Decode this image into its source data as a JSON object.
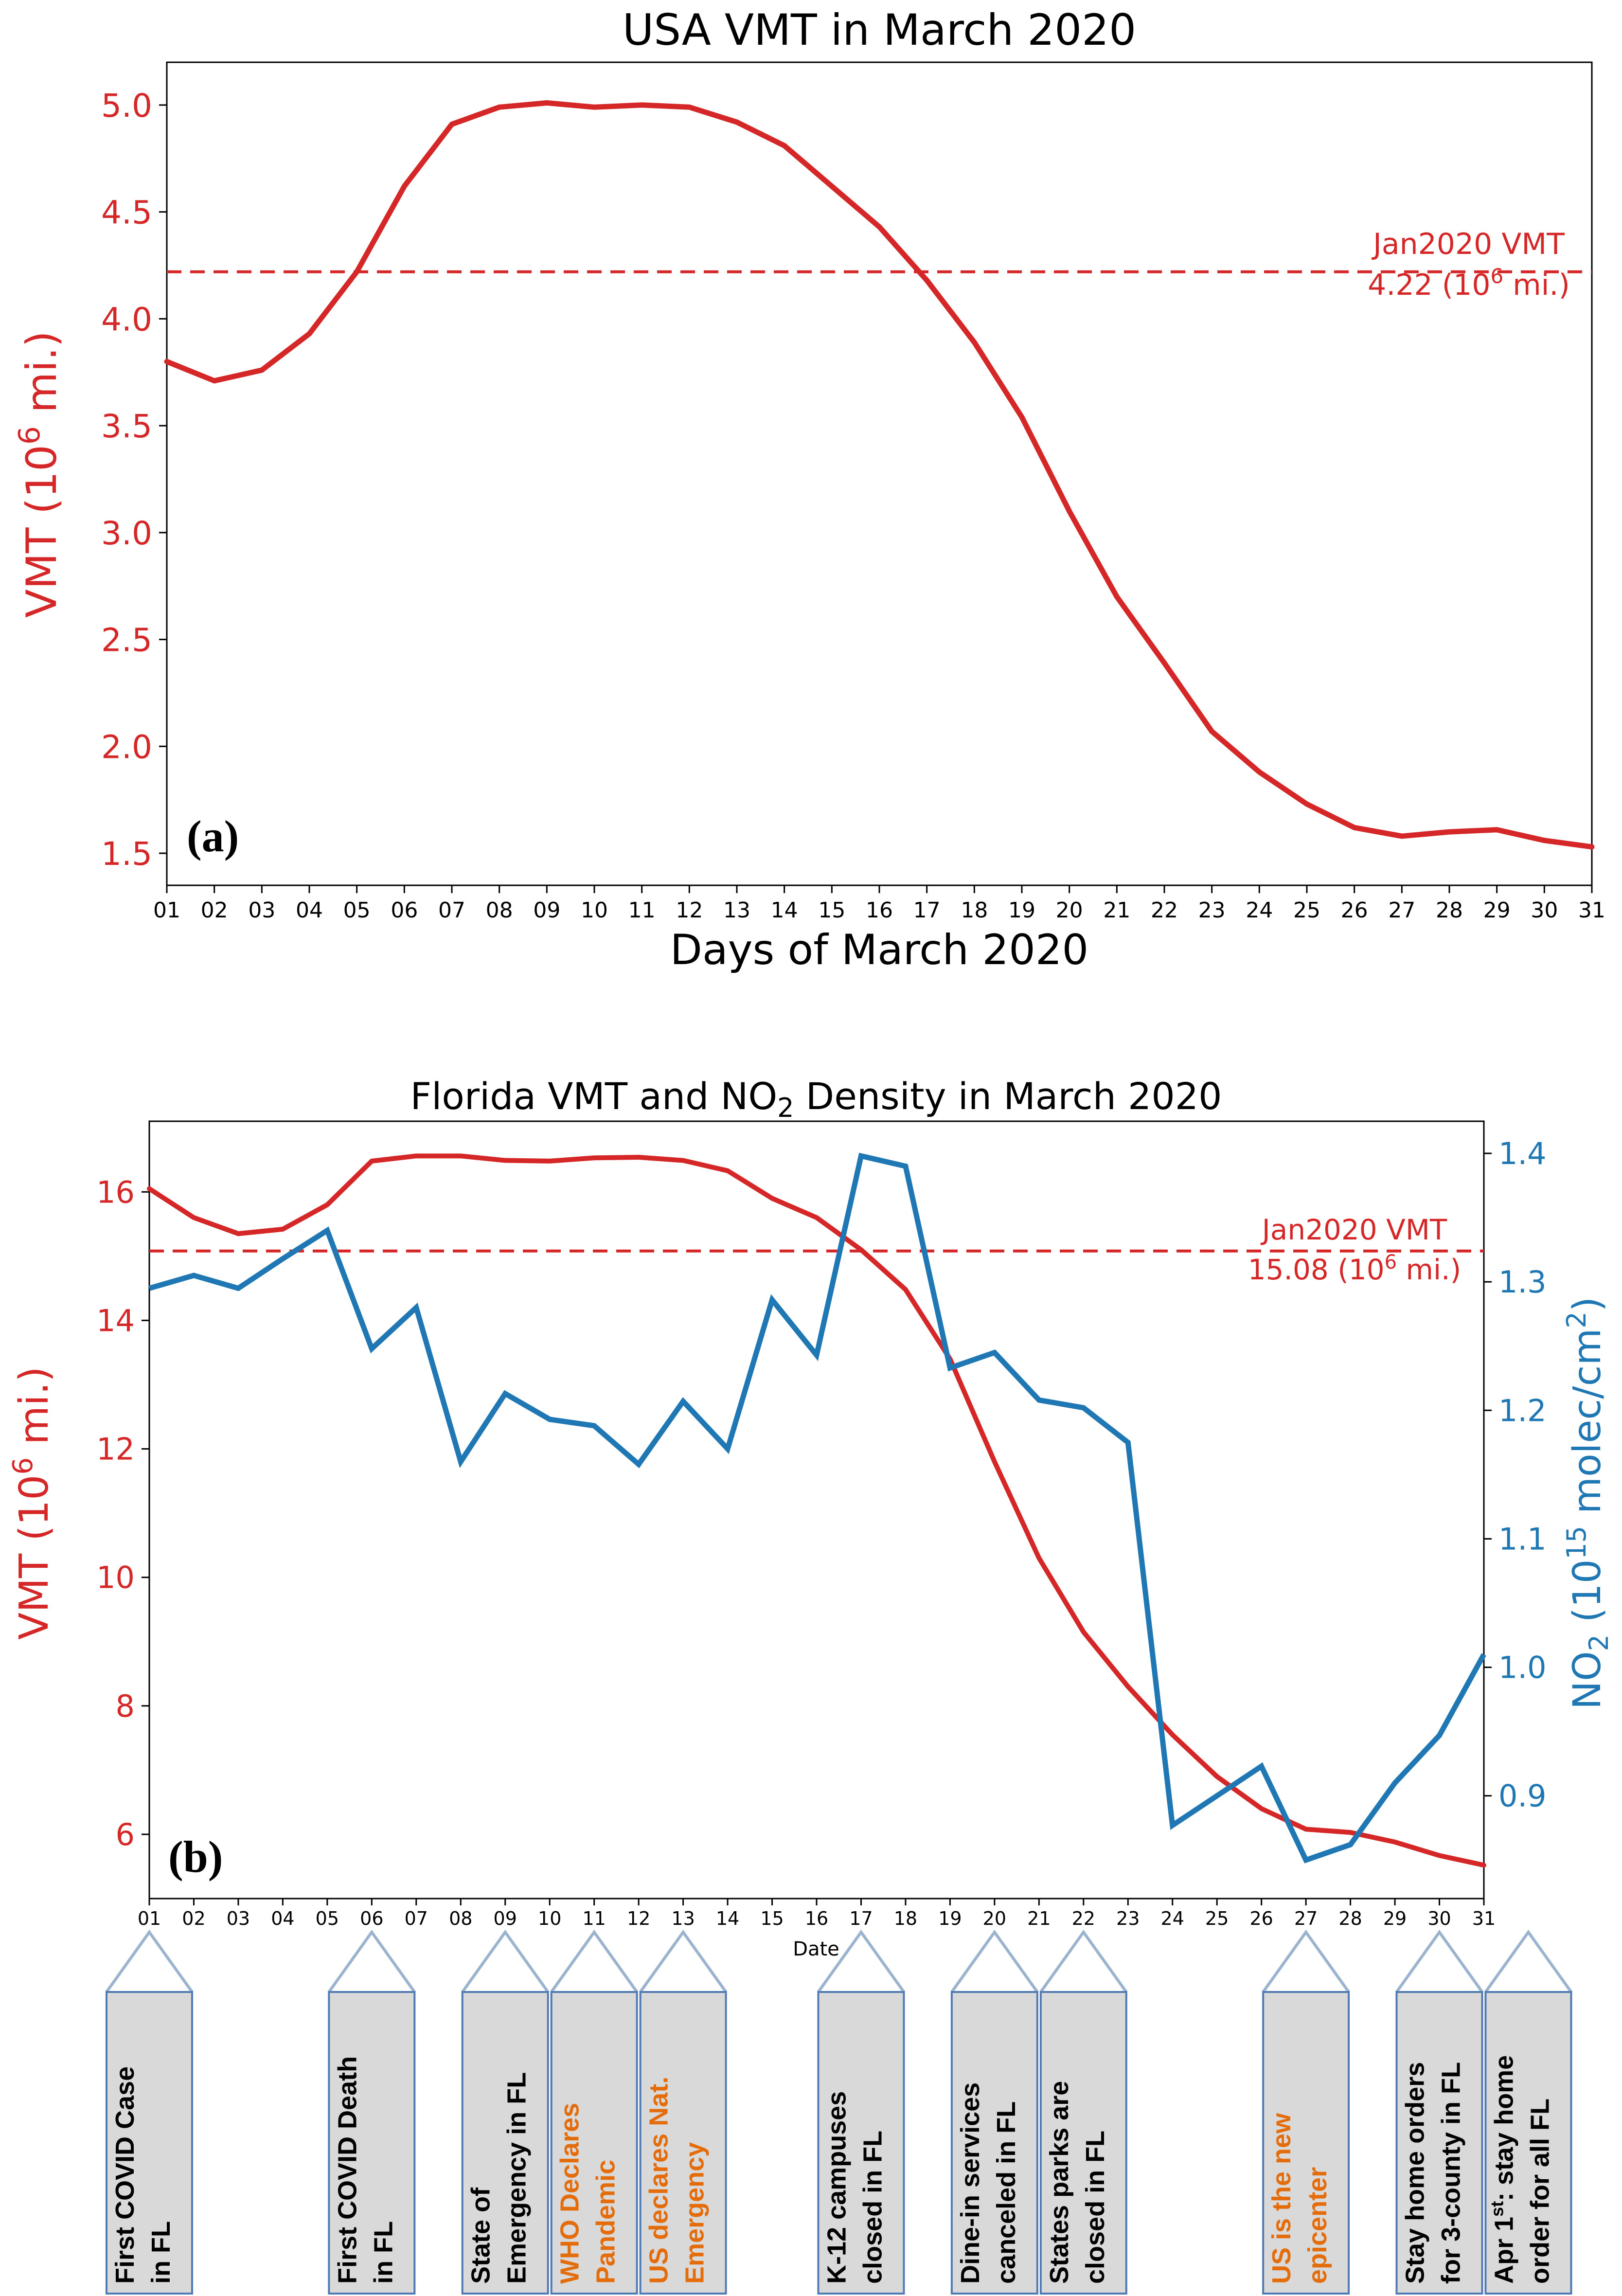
{
  "colors": {
    "vmt": "#d62728",
    "no2": "#1f77b4",
    "axis": "#000000",
    "callout_fill": "#d9d9d9",
    "callout_border": "#4f7ab3",
    "arrow_stroke": "#9bb3cf",
    "event_black": "#000000",
    "event_orange": "#e46c0a"
  },
  "chart_data": [
    {
      "panel": "(a)",
      "type": "line",
      "title": "USA VMT in March 2020",
      "xlabel": "Days of March 2020",
      "ylabel": "VMT (10^6 mi.)",
      "ylabel_base": "VMT (10",
      "ylabel_sup": "6",
      "ylabel_tail": " mi.)",
      "x": [
        "01",
        "02",
        "03",
        "04",
        "05",
        "06",
        "07",
        "08",
        "09",
        "10",
        "11",
        "12",
        "13",
        "14",
        "15",
        "16",
        "17",
        "18",
        "19",
        "20",
        "21",
        "22",
        "23",
        "24",
        "25",
        "26",
        "27",
        "28",
        "29",
        "30",
        "31"
      ],
      "series": [
        {
          "name": "USA VMT",
          "axis": "left",
          "values": [
            3.8,
            3.71,
            3.76,
            3.93,
            4.22,
            4.62,
            4.91,
            4.99,
            5.01,
            4.99,
            5.0,
            4.99,
            4.92,
            4.81,
            4.62,
            4.43,
            4.18,
            3.89,
            3.54,
            3.1,
            2.7,
            2.39,
            2.07,
            1.88,
            1.73,
            1.62,
            1.58,
            1.6,
            1.61,
            1.56,
            1.53
          ]
        }
      ],
      "ylim": [
        1.35,
        5.2
      ],
      "yticks": [
        "1.5",
        "2.0",
        "2.5",
        "3.0",
        "3.5",
        "4.0",
        "4.5",
        "5.0"
      ],
      "baseline": {
        "value": 4.22,
        "label_line1": "Jan2020 VMT",
        "label_line2_base": "4.22 (10",
        "label_line2_sup": "6",
        "label_line2_tail": " mi.)"
      },
      "grid": false
    },
    {
      "panel": "(b)",
      "type": "line",
      "title_base": "Florida VMT and NO",
      "title_sub": "2",
      "title_tail": " Density in March 2020",
      "xlabel": "Date",
      "ylabel_left_base": "VMT (10",
      "ylabel_left_sup": "6",
      "ylabel_left_tail": " mi.)",
      "ylabel_right_no": "NO",
      "ylabel_right_sub": "2",
      "ylabel_right_mid": " (10",
      "ylabel_right_sup": "15",
      "ylabel_right_unit": " molec/cm",
      "ylabel_right_sup2": "2",
      "ylabel_right_close": ")",
      "x": [
        "01",
        "02",
        "03",
        "04",
        "05",
        "06",
        "07",
        "08",
        "09",
        "10",
        "11",
        "12",
        "13",
        "14",
        "15",
        "16",
        "17",
        "18",
        "19",
        "20",
        "21",
        "22",
        "23",
        "24",
        "25",
        "26",
        "27",
        "28",
        "29",
        "30",
        "31"
      ],
      "series": [
        {
          "name": "Florida VMT",
          "axis": "left",
          "values": [
            16.05,
            15.6,
            15.35,
            15.42,
            15.8,
            16.48,
            16.56,
            16.56,
            16.49,
            16.48,
            16.53,
            16.54,
            16.49,
            16.33,
            15.9,
            15.6,
            15.1,
            14.48,
            13.4,
            11.8,
            10.3,
            9.15,
            8.3,
            7.55,
            6.9,
            6.4,
            6.08,
            6.03,
            5.88,
            5.67,
            5.52
          ]
        },
        {
          "name": "Florida NO2",
          "axis": "right",
          "values": [
            1.295,
            1.305,
            1.295,
            1.318,
            1.34,
            1.248,
            1.28,
            1.16,
            1.213,
            1.193,
            1.188,
            1.158,
            1.207,
            1.17,
            1.286,
            1.243,
            1.398,
            1.39,
            1.233,
            1.245,
            1.208,
            1.202,
            1.175,
            0.877,
            0.9,
            0.923,
            0.85,
            0.862,
            0.91,
            0.947,
            1.01
          ]
        }
      ],
      "ylim_left": [
        5.0,
        17.1
      ],
      "yticks_left": [
        "6",
        "8",
        "10",
        "12",
        "14",
        "16"
      ],
      "ylim_right": [
        0.82,
        1.425
      ],
      "yticks_right": [
        "0.9",
        "1.0",
        "1.1",
        "1.2",
        "1.3",
        "1.4"
      ],
      "baseline": {
        "value": 15.08,
        "label_line1": "Jan2020 VMT",
        "label_line2_base": "15.08 (10",
        "label_line2_sup": "6",
        "label_line2_tail": " mi.)"
      },
      "grid": false
    }
  ],
  "events": [
    {
      "day": 1,
      "lines": [
        "First COVID Case",
        "in FL"
      ],
      "color": "black"
    },
    {
      "day": 6,
      "lines": [
        "First COVID Death",
        "in FL"
      ],
      "color": "black"
    },
    {
      "day": 9,
      "lines": [
        "State of",
        "Emergency in FL"
      ],
      "color": "black"
    },
    {
      "day": 11,
      "lines": [
        "WHO Declares",
        "Pandemic"
      ],
      "color": "orange"
    },
    {
      "day": 13,
      "lines": [
        "US declares Nat.",
        "Emergency"
      ],
      "color": "orange"
    },
    {
      "day": 17,
      "lines": [
        "K-12 campuses",
        "closed in FL"
      ],
      "color": "black"
    },
    {
      "day": 20,
      "lines": [
        "Dine-in services",
        "canceled in FL"
      ],
      "color": "black"
    },
    {
      "day": 22,
      "lines": [
        "States parks are",
        "closed in FL"
      ],
      "color": "black"
    },
    {
      "day": 27,
      "lines": [
        "US is the new",
        "epicenter"
      ],
      "color": "orange"
    },
    {
      "day": 30,
      "lines": [
        "Stay home orders",
        "for 3-county in FL"
      ],
      "color": "black"
    },
    {
      "day": 32,
      "lines_rich": [
        {
          "base": "Apr 1",
          "sup": "st",
          "tail": ": stay home"
        },
        {
          "base": "order for all FL",
          "sup": "",
          "tail": ""
        }
      ],
      "color": "black"
    }
  ]
}
